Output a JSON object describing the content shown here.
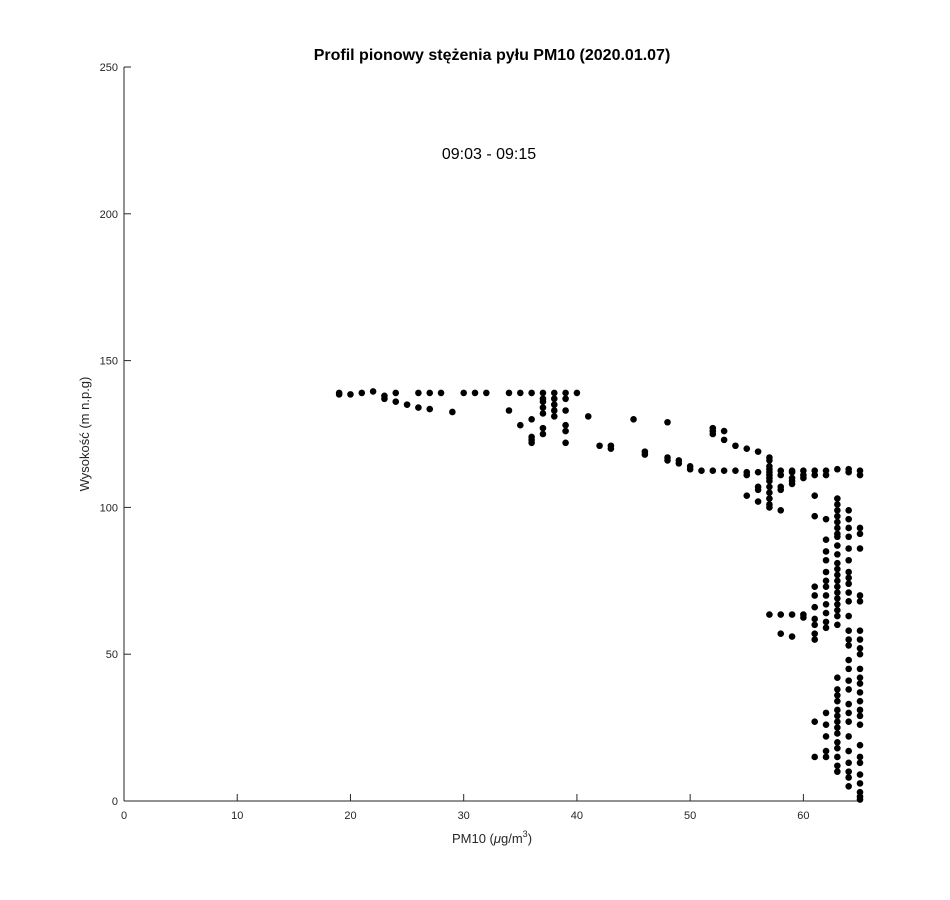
{
  "chart_data": {
    "type": "scatter",
    "title": "Profil pionowy stężenia pyłu PM10 (2020.01.07)",
    "annotation": "09:03 - 09:15",
    "xlabel_main": "PM10 (",
    "xlabel_mu": "μ",
    "xlabel_unit": "g/m",
    "xlabel_sup": "3",
    "xlabel_close": ")",
    "ylabel": "Wysokość (m n.p.g)",
    "xlim": [
      0,
      65
    ],
    "ylim": [
      0,
      250
    ],
    "xticks": [
      0,
      10,
      20,
      30,
      40,
      50,
      60
    ],
    "yticks": [
      0,
      50,
      100,
      150,
      200,
      250
    ],
    "grid": false,
    "marker_color": "#000000",
    "points": [
      [
        19,
        139
      ],
      [
        19,
        138.5
      ],
      [
        20,
        138.5
      ],
      [
        21,
        139
      ],
      [
        22,
        139.5
      ],
      [
        23,
        138
      ],
      [
        23,
        137
      ],
      [
        24,
        139
      ],
      [
        24,
        136
      ],
      [
        25,
        135
      ],
      [
        26,
        139
      ],
      [
        26,
        134
      ],
      [
        27,
        139
      ],
      [
        27,
        133.5
      ],
      [
        28,
        139
      ],
      [
        29,
        132.5
      ],
      [
        30,
        139
      ],
      [
        31,
        139
      ],
      [
        32,
        139
      ],
      [
        34,
        139
      ],
      [
        34,
        133
      ],
      [
        35,
        139
      ],
      [
        35,
        128
      ],
      [
        36,
        139
      ],
      [
        36,
        130
      ],
      [
        36,
        124
      ],
      [
        36,
        123
      ],
      [
        36,
        122
      ],
      [
        37,
        139
      ],
      [
        37,
        137
      ],
      [
        37,
        136
      ],
      [
        37,
        134
      ],
      [
        37,
        132
      ],
      [
        37,
        127
      ],
      [
        37,
        125
      ],
      [
        38,
        139
      ],
      [
        38,
        137
      ],
      [
        38,
        135
      ],
      [
        38,
        133
      ],
      [
        38,
        131
      ],
      [
        39,
        139
      ],
      [
        39,
        137
      ],
      [
        39,
        133
      ],
      [
        39,
        128
      ],
      [
        39,
        126
      ],
      [
        39,
        122
      ],
      [
        40,
        139
      ],
      [
        41,
        131
      ],
      [
        42,
        121
      ],
      [
        43,
        121
      ],
      [
        43,
        120
      ],
      [
        45,
        130
      ],
      [
        46,
        119
      ],
      [
        46,
        118
      ],
      [
        48,
        129
      ],
      [
        48,
        117
      ],
      [
        48,
        116
      ],
      [
        49,
        116
      ],
      [
        49,
        115
      ],
      [
        50,
        114
      ],
      [
        50,
        113
      ],
      [
        51,
        112.5
      ],
      [
        52,
        127
      ],
      [
        52,
        126
      ],
      [
        52,
        125
      ],
      [
        52,
        112.5
      ],
      [
        53,
        126
      ],
      [
        53,
        123
      ],
      [
        53,
        112.5
      ],
      [
        54,
        121
      ],
      [
        54,
        112.5
      ],
      [
        55,
        120
      ],
      [
        55,
        112
      ],
      [
        55,
        111
      ],
      [
        55,
        104
      ],
      [
        56,
        119
      ],
      [
        56,
        112
      ],
      [
        56,
        107
      ],
      [
        56,
        106
      ],
      [
        56,
        102
      ],
      [
        57,
        117
      ],
      [
        57,
        116
      ],
      [
        57,
        114
      ],
      [
        57,
        113
      ],
      [
        57,
        112
      ],
      [
        57,
        111
      ],
      [
        57,
        110
      ],
      [
        57,
        109
      ],
      [
        57,
        107
      ],
      [
        57,
        105
      ],
      [
        57,
        103
      ],
      [
        57,
        101
      ],
      [
        57,
        100
      ],
      [
        58,
        112.5
      ],
      [
        58,
        111
      ],
      [
        58,
        107
      ],
      [
        58,
        106
      ],
      [
        58,
        99
      ],
      [
        59,
        112.5
      ],
      [
        59,
        112
      ],
      [
        59,
        110
      ],
      [
        59,
        109
      ],
      [
        59,
        108
      ],
      [
        60,
        112.5
      ],
      [
        60,
        111
      ],
      [
        60,
        110
      ],
      [
        61,
        112.5
      ],
      [
        61,
        111
      ],
      [
        61,
        104
      ],
      [
        61,
        97
      ],
      [
        62,
        112.5
      ],
      [
        62,
        111
      ],
      [
        62,
        96
      ],
      [
        63,
        113
      ],
      [
        63,
        103
      ],
      [
        63,
        101
      ],
      [
        63,
        99
      ],
      [
        63,
        97
      ],
      [
        63,
        95
      ],
      [
        63,
        93
      ],
      [
        63,
        91
      ],
      [
        63,
        90
      ],
      [
        63,
        87
      ],
      [
        63,
        84
      ],
      [
        63,
        81
      ],
      [
        63,
        79
      ],
      [
        63,
        77
      ],
      [
        63,
        75
      ],
      [
        63,
        73
      ],
      [
        63,
        71
      ],
      [
        63,
        69
      ],
      [
        63,
        67
      ],
      [
        63,
        65
      ],
      [
        63,
        63
      ],
      [
        63,
        60
      ],
      [
        63,
        42
      ],
      [
        63,
        38
      ],
      [
        63,
        36
      ],
      [
        63,
        34
      ],
      [
        63,
        31
      ],
      [
        63,
        29
      ],
      [
        63,
        27
      ],
      [
        63,
        25
      ],
      [
        63,
        23
      ],
      [
        63,
        20
      ],
      [
        63,
        18
      ],
      [
        63,
        15
      ],
      [
        63,
        12
      ],
      [
        63,
        10
      ],
      [
        62,
        89
      ],
      [
        62,
        85
      ],
      [
        62,
        82
      ],
      [
        62,
        78
      ],
      [
        62,
        75
      ],
      [
        62,
        73
      ],
      [
        62,
        70
      ],
      [
        62,
        67
      ],
      [
        62,
        64
      ],
      [
        62,
        61
      ],
      [
        62,
        59
      ],
      [
        62,
        30
      ],
      [
        62,
        26
      ],
      [
        62,
        22
      ],
      [
        62,
        17
      ],
      [
        62,
        15
      ],
      [
        61,
        73
      ],
      [
        61,
        70
      ],
      [
        61,
        66
      ],
      [
        61,
        62
      ],
      [
        61,
        60
      ],
      [
        61,
        57
      ],
      [
        61,
        55
      ],
      [
        61,
        27
      ],
      [
        61,
        15
      ],
      [
        64,
        113
      ],
      [
        64,
        112
      ],
      [
        64,
        99
      ],
      [
        64,
        96
      ],
      [
        64,
        93
      ],
      [
        64,
        90
      ],
      [
        64,
        86
      ],
      [
        64,
        82
      ],
      [
        64,
        78
      ],
      [
        64,
        76
      ],
      [
        64,
        74
      ],
      [
        64,
        71
      ],
      [
        64,
        68
      ],
      [
        64,
        63
      ],
      [
        64,
        58
      ],
      [
        64,
        55
      ],
      [
        64,
        53
      ],
      [
        64,
        48
      ],
      [
        64,
        45
      ],
      [
        64,
        41
      ],
      [
        64,
        38
      ],
      [
        64,
        33
      ],
      [
        64,
        30
      ],
      [
        64,
        27
      ],
      [
        64,
        22
      ],
      [
        64,
        17
      ],
      [
        64,
        13
      ],
      [
        64,
        10
      ],
      [
        64,
        8
      ],
      [
        64,
        5
      ],
      [
        65,
        112.5
      ],
      [
        65,
        111
      ],
      [
        65,
        93
      ],
      [
        65,
        91
      ],
      [
        65,
        86
      ],
      [
        65,
        70
      ],
      [
        65,
        68
      ],
      [
        65,
        58
      ],
      [
        65,
        55
      ],
      [
        65,
        52
      ],
      [
        65,
        50
      ],
      [
        65,
        45
      ],
      [
        65,
        42
      ],
      [
        65,
        40
      ],
      [
        65,
        37
      ],
      [
        65,
        34
      ],
      [
        65,
        31
      ],
      [
        65,
        29
      ],
      [
        65,
        26
      ],
      [
        65,
        19
      ],
      [
        65,
        15
      ],
      [
        65,
        13
      ],
      [
        65,
        9
      ],
      [
        65,
        6
      ],
      [
        65,
        3
      ],
      [
        65,
        1.5
      ],
      [
        65,
        0.5
      ],
      [
        58,
        63.5
      ],
      [
        58,
        57
      ],
      [
        59,
        63.5
      ],
      [
        59,
        56
      ],
      [
        60,
        63.5
      ],
      [
        60,
        62.5
      ],
      [
        57,
        63.5
      ]
    ]
  }
}
